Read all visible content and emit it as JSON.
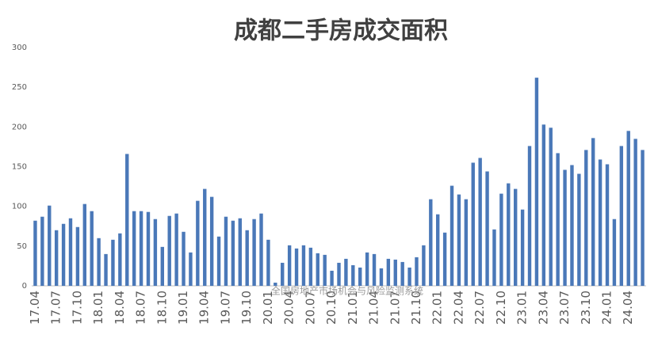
{
  "chart_data": {
    "type": "bar",
    "title": "成都二手房成交面积",
    "watermark": "全国房地产市场机会与风险监测系统",
    "categories": [
      "17.04",
      null,
      null,
      "17.07",
      null,
      null,
      "17.10",
      null,
      null,
      "18.01",
      null,
      null,
      "18.04",
      null,
      null,
      "18.07",
      null,
      null,
      "18.10",
      null,
      null,
      "19.01",
      null,
      null,
      "19.04",
      null,
      null,
      "19.07",
      null,
      null,
      "19.10",
      null,
      null,
      "20.01",
      null,
      null,
      "20.04",
      null,
      null,
      "20.07",
      null,
      null,
      "20.10",
      null,
      null,
      "21.01",
      null,
      null,
      "21.04",
      null,
      null,
      "21.07",
      null,
      null,
      "21.10",
      null,
      null,
      "22.01",
      null,
      null,
      "22.04",
      null,
      null,
      "22.07",
      null,
      null,
      "22.10",
      null,
      null,
      "23.01",
      null,
      null,
      "23.04",
      null,
      null,
      "23.07",
      null,
      null,
      "23.10",
      null,
      null,
      "24.01",
      null,
      null,
      "24.04",
      null,
      null
    ],
    "values": [
      82,
      87,
      101,
      70,
      78,
      85,
      74,
      103,
      94,
      60,
      40,
      58,
      66,
      166,
      94,
      94,
      93,
      84,
      49,
      88,
      91,
      68,
      42,
      107,
      122,
      112,
      62,
      87,
      82,
      85,
      70,
      84,
      91,
      58,
      4,
      29,
      51,
      47,
      51,
      48,
      41,
      39,
      19,
      29,
      34,
      26,
      23,
      42,
      40,
      22,
      34,
      33,
      30,
      23,
      36,
      51,
      109,
      90,
      67,
      126,
      115,
      109,
      155,
      161,
      144,
      71,
      116,
      129,
      122,
      96,
      176,
      262,
      203,
      199,
      167,
      146,
      152,
      141,
      171,
      186,
      159,
      153,
      84,
      176,
      195,
      185,
      171
    ],
    "color": "#4a78b8",
    "ylim": [
      0,
      300
    ],
    "yticks": [
      0,
      50,
      100,
      150,
      200,
      250,
      300
    ],
    "grid": false
  }
}
